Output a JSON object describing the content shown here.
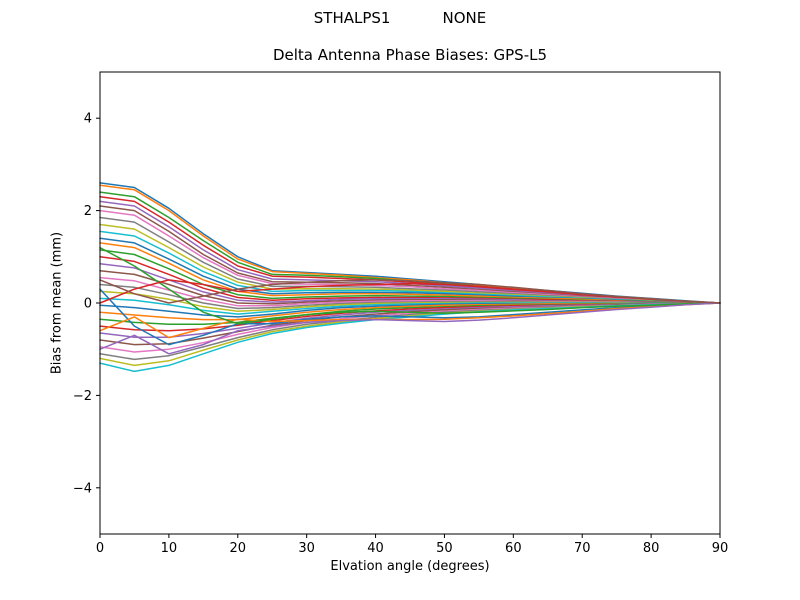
{
  "suptitle": {
    "left": "STHALPS1",
    "right": "NONE"
  },
  "chart_data": {
    "type": "line",
    "title": "Delta Antenna Phase Biases: GPS-L5",
    "xlabel": "Elvation angle (degrees)",
    "ylabel": "Bias from mean (mm)",
    "xlim": [
      0,
      90
    ],
    "ylim": [
      -5,
      5
    ],
    "xticks": [
      0,
      10,
      20,
      30,
      40,
      50,
      60,
      70,
      80,
      90
    ],
    "yticks": [
      -4,
      -2,
      0,
      2,
      4
    ],
    "grid": false,
    "legend": "none",
    "x": [
      0,
      5,
      10,
      15,
      20,
      25,
      30,
      35,
      40,
      45,
      50,
      55,
      60,
      65,
      70,
      75,
      80,
      85,
      90
    ],
    "palette": [
      "#1f77b4",
      "#ff7f0e",
      "#2ca02c",
      "#d62728",
      "#9467bd",
      "#8c564b",
      "#e377c2",
      "#7f7f7f",
      "#bcbd22",
      "#17becf"
    ],
    "series": [
      [
        2.6,
        2.5,
        2.05,
        1.5,
        1.0,
        0.7,
        0.66,
        0.62,
        0.58,
        0.52,
        0.46,
        0.4,
        0.33,
        0.27,
        0.21,
        0.15,
        0.1,
        0.05,
        0.0
      ],
      [
        2.55,
        2.45,
        2.0,
        1.45,
        0.95,
        0.68,
        0.64,
        0.6,
        0.55,
        0.5,
        0.44,
        0.38,
        0.31,
        0.25,
        0.19,
        0.14,
        0.09,
        0.04,
        0.0
      ],
      [
        2.4,
        2.3,
        1.85,
        1.35,
        0.88,
        0.62,
        0.6,
        0.57,
        0.53,
        0.47,
        0.42,
        0.36,
        0.3,
        0.24,
        0.18,
        0.13,
        0.08,
        0.04,
        0.0
      ],
      [
        2.3,
        2.2,
        1.75,
        1.25,
        0.8,
        0.58,
        0.56,
        0.53,
        0.5,
        0.45,
        0.4,
        0.34,
        0.28,
        0.22,
        0.17,
        0.12,
        0.08,
        0.03,
        0.0
      ],
      [
        2.2,
        2.1,
        1.65,
        1.15,
        0.72,
        0.52,
        0.5,
        0.48,
        0.46,
        0.42,
        0.37,
        0.32,
        0.26,
        0.21,
        0.16,
        0.11,
        0.07,
        0.03,
        0.0
      ],
      [
        2.1,
        2.0,
        1.55,
        1.05,
        0.65,
        0.46,
        0.45,
        0.44,
        0.42,
        0.38,
        0.34,
        0.29,
        0.24,
        0.19,
        0.14,
        0.1,
        0.06,
        0.03,
        0.0
      ],
      [
        2.0,
        1.9,
        1.45,
        0.98,
        0.6,
        0.42,
        0.41,
        0.4,
        0.38,
        0.35,
        0.31,
        0.27,
        0.22,
        0.18,
        0.13,
        0.09,
        0.06,
        0.02,
        0.0
      ],
      [
        1.85,
        1.75,
        1.32,
        0.88,
        0.52,
        0.36,
        0.36,
        0.35,
        0.34,
        0.31,
        0.28,
        0.24,
        0.2,
        0.16,
        0.12,
        0.08,
        0.05,
        0.02,
        0.0
      ],
      [
        1.7,
        1.6,
        1.2,
        0.78,
        0.45,
        0.3,
        0.31,
        0.31,
        0.3,
        0.28,
        0.25,
        0.21,
        0.18,
        0.14,
        0.11,
        0.07,
        0.05,
        0.02,
        0.0
      ],
      [
        1.55,
        1.45,
        1.08,
        0.68,
        0.38,
        0.25,
        0.27,
        0.27,
        0.27,
        0.25,
        0.22,
        0.19,
        0.16,
        0.13,
        0.1,
        0.07,
        0.04,
        0.02,
        0.0
      ],
      [
        1.4,
        1.3,
        0.95,
        0.58,
        0.3,
        0.2,
        0.22,
        0.23,
        0.23,
        0.22,
        0.2,
        0.17,
        0.14,
        0.11,
        0.09,
        0.06,
        0.04,
        0.02,
        0.0
      ],
      [
        1.3,
        1.2,
        0.86,
        0.5,
        0.25,
        0.16,
        0.18,
        0.2,
        0.2,
        0.19,
        0.17,
        0.15,
        0.12,
        0.1,
        0.08,
        0.05,
        0.03,
        0.01,
        0.0
      ],
      [
        1.15,
        1.05,
        0.74,
        0.4,
        0.18,
        0.1,
        0.13,
        0.15,
        0.16,
        0.15,
        0.14,
        0.12,
        0.1,
        0.08,
        0.06,
        0.04,
        0.03,
        0.01,
        0.0
      ],
      [
        1.0,
        0.9,
        0.62,
        0.32,
        0.12,
        0.06,
        0.09,
        0.11,
        0.12,
        0.12,
        0.11,
        0.1,
        0.08,
        0.07,
        0.05,
        0.04,
        0.02,
        0.01,
        0.0
      ],
      [
        0.85,
        0.76,
        0.5,
        0.24,
        0.06,
        0.02,
        0.05,
        0.08,
        0.09,
        0.09,
        0.09,
        0.08,
        0.07,
        0.05,
        0.04,
        0.03,
        0.02,
        0.01,
        0.0
      ],
      [
        0.7,
        0.62,
        0.4,
        0.16,
        0.0,
        -0.02,
        0.02,
        0.05,
        0.06,
        0.07,
        0.07,
        0.06,
        0.05,
        0.04,
        0.03,
        0.02,
        0.02,
        0.01,
        0.0
      ],
      [
        0.55,
        0.48,
        0.28,
        0.08,
        -0.06,
        -0.06,
        -0.01,
        0.02,
        0.04,
        0.05,
        0.05,
        0.05,
        0.04,
        0.03,
        0.03,
        0.02,
        0.01,
        0.01,
        0.0
      ],
      [
        0.4,
        0.34,
        0.18,
        0.0,
        -0.12,
        -0.1,
        -0.05,
        -0.01,
        0.01,
        0.02,
        0.03,
        0.03,
        0.03,
        0.02,
        0.02,
        0.01,
        0.01,
        0.0,
        0.0
      ],
      [
        0.25,
        0.2,
        0.08,
        -0.08,
        -0.18,
        -0.14,
        -0.08,
        -0.04,
        -0.01,
        0.0,
        0.01,
        0.01,
        0.01,
        0.01,
        0.01,
        0.01,
        0.0,
        0.0,
        0.0
      ],
      [
        0.1,
        0.06,
        -0.04,
        -0.16,
        -0.24,
        -0.18,
        -0.12,
        -0.07,
        -0.04,
        -0.02,
        -0.01,
        0.0,
        0.0,
        0.0,
        0.0,
        0.0,
        0.0,
        0.0,
        0.0
      ],
      [
        -0.05,
        -0.1,
        -0.18,
        -0.26,
        -0.3,
        -0.24,
        -0.16,
        -0.1,
        -0.07,
        -0.05,
        -0.03,
        -0.02,
        -0.02,
        -0.01,
        -0.01,
        -0.01,
        0.0,
        0.0,
        0.0
      ],
      [
        -0.2,
        -0.26,
        -0.32,
        -0.36,
        -0.36,
        -0.28,
        -0.2,
        -0.14,
        -0.1,
        -0.07,
        -0.05,
        -0.04,
        -0.03,
        -0.02,
        -0.02,
        -0.01,
        -0.01,
        0.0,
        0.0
      ],
      [
        -0.35,
        -0.42,
        -0.46,
        -0.46,
        -0.42,
        -0.33,
        -0.25,
        -0.18,
        -0.13,
        -0.1,
        -0.08,
        -0.06,
        -0.05,
        -0.04,
        -0.03,
        -0.02,
        -0.01,
        -0.01,
        0.0
      ],
      [
        -0.5,
        -0.58,
        -0.6,
        -0.56,
        -0.48,
        -0.38,
        -0.29,
        -0.22,
        -0.17,
        -0.13,
        -0.1,
        -0.08,
        -0.06,
        -0.05,
        -0.04,
        -0.03,
        -0.02,
        -0.01,
        0.0
      ],
      [
        -0.65,
        -0.74,
        -0.74,
        -0.66,
        -0.55,
        -0.43,
        -0.33,
        -0.26,
        -0.2,
        -0.16,
        -0.13,
        -0.1,
        -0.08,
        -0.06,
        -0.05,
        -0.03,
        -0.02,
        -0.01,
        0.0
      ],
      [
        -0.8,
        -0.9,
        -0.88,
        -0.76,
        -0.62,
        -0.48,
        -0.38,
        -0.3,
        -0.24,
        -0.19,
        -0.15,
        -0.12,
        -0.1,
        -0.08,
        -0.06,
        -0.04,
        -0.03,
        -0.01,
        0.0
      ],
      [
        -0.95,
        -1.06,
        -1.0,
        -0.86,
        -0.68,
        -0.53,
        -0.42,
        -0.34,
        -0.27,
        -0.22,
        -0.18,
        -0.14,
        -0.11,
        -0.09,
        -0.07,
        -0.05,
        -0.03,
        -0.02,
        0.0
      ],
      [
        -1.1,
        -1.22,
        -1.14,
        -0.95,
        -0.75,
        -0.58,
        -0.46,
        -0.38,
        -0.31,
        -0.25,
        -0.2,
        -0.16,
        -0.13,
        -0.1,
        -0.08,
        -0.05,
        -0.04,
        -0.02,
        0.0
      ],
      [
        -1.2,
        -1.35,
        -1.25,
        -1.02,
        -0.8,
        -0.62,
        -0.5,
        -0.41,
        -0.34,
        -0.28,
        -0.22,
        -0.18,
        -0.14,
        -0.11,
        -0.08,
        -0.06,
        -0.04,
        -0.02,
        0.0
      ],
      [
        -1.3,
        -1.48,
        -1.35,
        -1.1,
        -0.85,
        -0.66,
        -0.53,
        -0.44,
        -0.36,
        -0.3,
        -0.24,
        -0.19,
        -0.15,
        -0.12,
        -0.09,
        -0.06,
        -0.04,
        -0.02,
        0.0
      ],
      [
        0.3,
        -0.5,
        -0.9,
        -0.7,
        -0.45,
        -0.45,
        -0.35,
        -0.3,
        -0.28,
        -0.3,
        -0.32,
        -0.3,
        -0.25,
        -0.2,
        -0.15,
        -0.1,
        -0.06,
        -0.03,
        0.0
      ],
      [
        -0.6,
        -0.3,
        -0.75,
        -0.55,
        -0.35,
        -0.4,
        -0.38,
        -0.36,
        -0.35,
        -0.36,
        -0.35,
        -0.32,
        -0.28,
        -0.23,
        -0.18,
        -0.12,
        -0.08,
        -0.04,
        0.0
      ],
      [
        1.2,
        0.8,
        0.3,
        -0.2,
        -0.45,
        -0.35,
        -0.25,
        -0.2,
        -0.18,
        -0.2,
        -0.22,
        -0.2,
        -0.17,
        -0.14,
        -0.1,
        -0.07,
        -0.05,
        -0.02,
        0.0
      ],
      [
        0.0,
        0.3,
        0.5,
        0.4,
        0.25,
        0.3,
        0.35,
        0.38,
        0.4,
        0.42,
        0.4,
        0.36,
        0.3,
        0.24,
        0.18,
        0.13,
        0.08,
        0.04,
        0.0
      ],
      [
        -1.0,
        -0.7,
        -1.1,
        -0.9,
        -0.6,
        -0.5,
        -0.42,
        -0.38,
        -0.36,
        -0.38,
        -0.4,
        -0.37,
        -0.32,
        -0.26,
        -0.2,
        -0.14,
        -0.09,
        -0.04,
        0.0
      ],
      [
        0.5,
        0.2,
        0.0,
        0.15,
        0.3,
        0.4,
        0.45,
        0.48,
        0.5,
        0.48,
        0.44,
        0.4,
        0.34,
        0.27,
        0.2,
        0.14,
        0.09,
        0.04,
        0.0
      ]
    ]
  }
}
